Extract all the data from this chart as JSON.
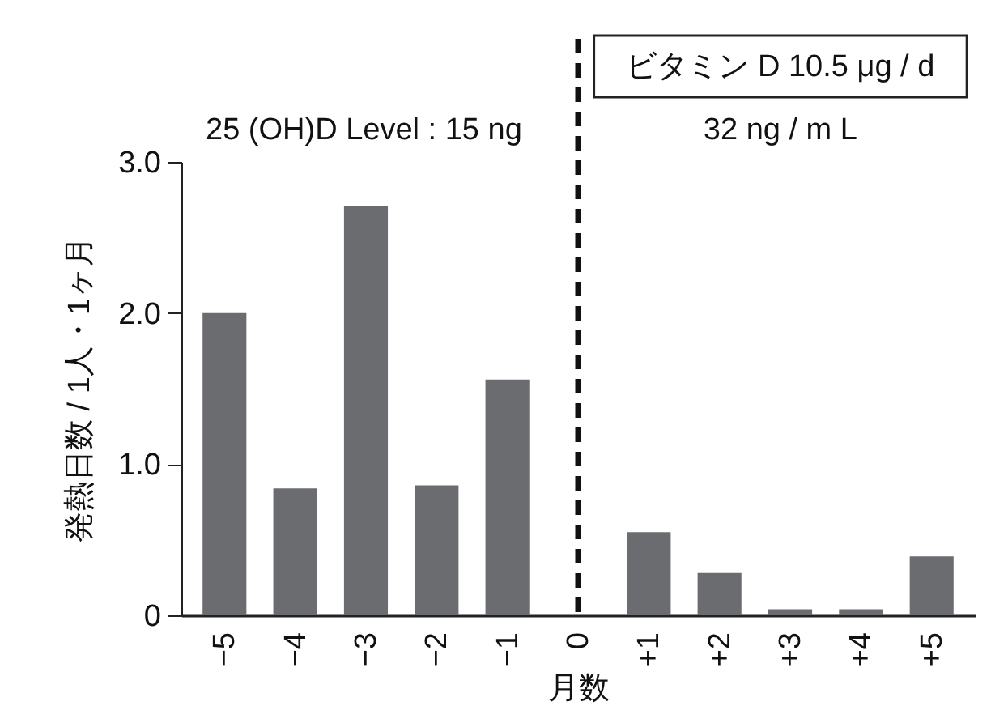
{
  "chart_data": {
    "type": "bar",
    "xlabel": "月数",
    "ylabel": "発熱日数 / 1人・1ヶ月",
    "categories": [
      "−5",
      "−4",
      "−3",
      "−2",
      "−1",
      "0",
      "+1",
      "+2",
      "+3",
      "+4",
      "+5"
    ],
    "values": [
      2.0,
      0.84,
      2.71,
      0.86,
      1.56,
      null,
      0.55,
      0.28,
      0.04,
      0.04,
      0.39
    ],
    "color": "#6b6c70",
    "ylim": [
      0,
      3
    ],
    "yticks": [
      0,
      {
        "value": 1,
        "label": "1.0"
      },
      {
        "value": 2,
        "label": "2.0"
      },
      {
        "value": 3,
        "label": "3.0"
      }
    ],
    "ref_lines": [
      {
        "axis": "x",
        "value": "0",
        "line_style": "dashed",
        "color": "#111111"
      }
    ],
    "annotations": [
      "ビタミン D 10.5 μg / d",
      "25 (OH)D Level : 15 ng",
      "32 ng / m L"
    ]
  }
}
